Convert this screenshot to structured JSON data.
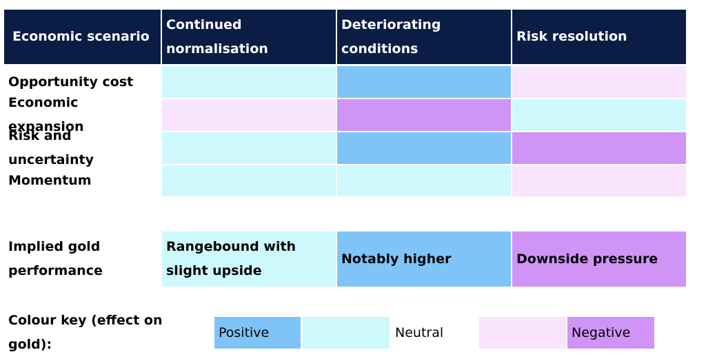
{
  "colors": {
    "header_bg": "#0b1d45",
    "strong_positive": "#7fc4f8",
    "weak_positive": "#cdf9fd",
    "weak_negative": "#f8e4fc",
    "strong_negative": "#d093f6"
  },
  "header": {
    "row_label": "Economic scenario",
    "columns": [
      "Continued normalisation",
      "Deteriorating conditions",
      "Risk resolution"
    ]
  },
  "rows": [
    {
      "label": "Opportunity cost",
      "effects": [
        "weak_positive",
        "strong_positive",
        "weak_negative"
      ]
    },
    {
      "label": "Economic expansion",
      "effects": [
        "weak_negative",
        "strong_negative",
        "weak_positive"
      ]
    },
    {
      "label": "Risk and uncertainty",
      "effects": [
        "weak_positive",
        "strong_positive",
        "strong_negative"
      ]
    },
    {
      "label": "Momentum",
      "effects": [
        "weak_positive",
        "weak_positive",
        "weak_negative"
      ]
    }
  ],
  "implied": {
    "label": "Implied gold performance",
    "values": [
      {
        "text": "Rangebound with slight upside",
        "effect": "weak_positive"
      },
      {
        "text": "Notably higher",
        "effect": "strong_positive"
      },
      {
        "text": "Downside pressure",
        "effect": "strong_negative"
      }
    ]
  },
  "key": {
    "label": "Colour key (effect on gold):",
    "positive": "Positive",
    "neutral": "Neutral",
    "negative": "Negative"
  }
}
